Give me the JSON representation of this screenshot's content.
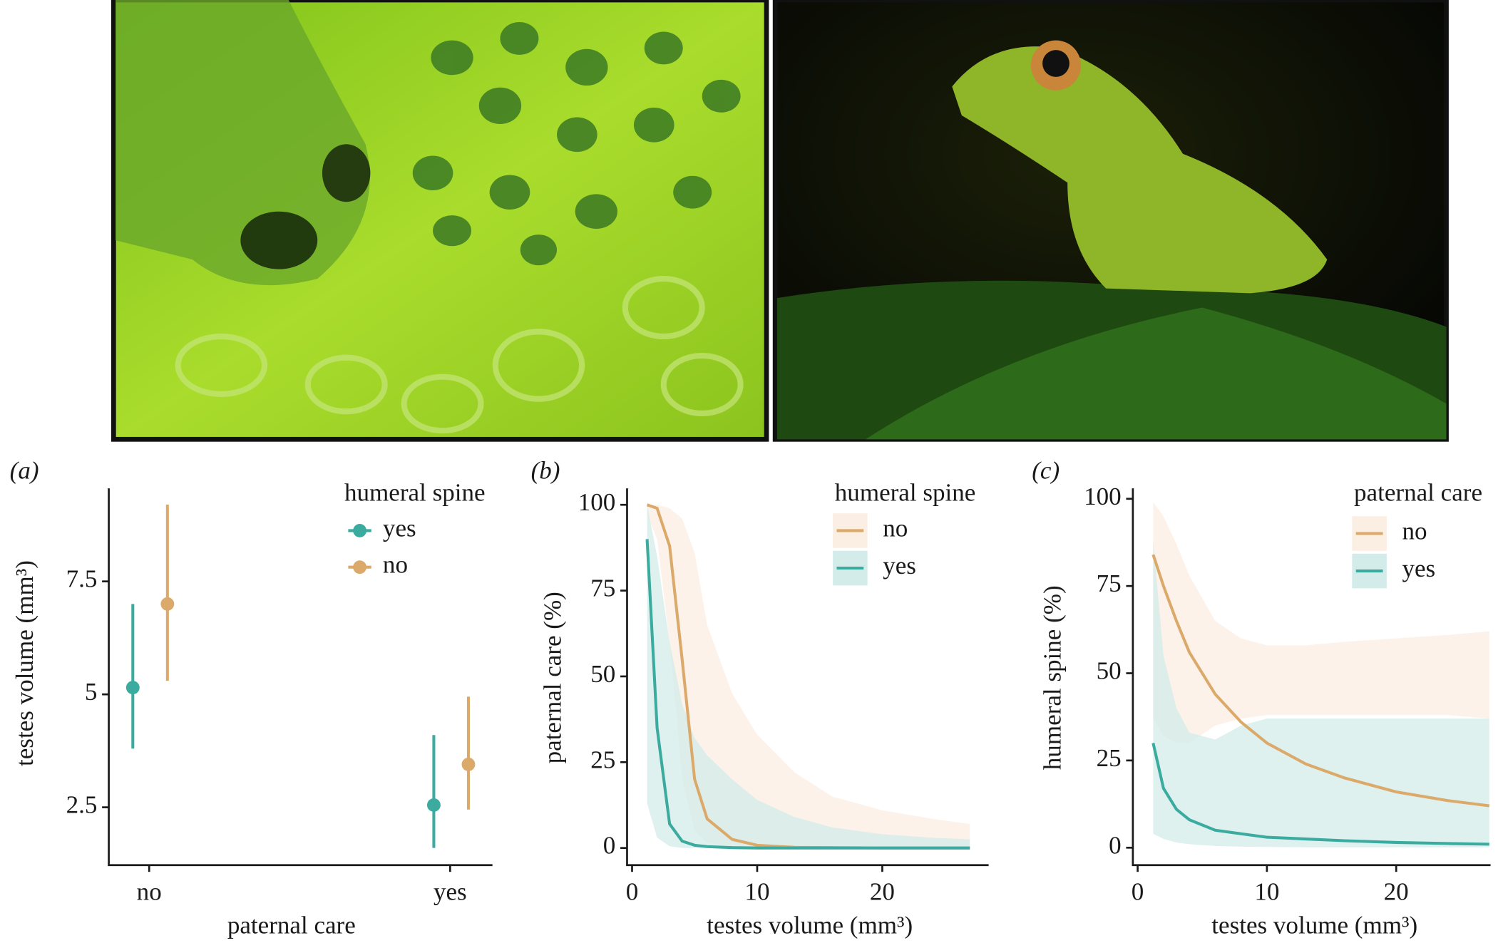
{
  "chart_data": [
    {
      "type": "errorbar",
      "panel_label": "(a)",
      "x_label": "paternal care",
      "y_label": "testes volume (mm³)",
      "legend_title": "humeral spine",
      "categories": [
        "no",
        "yes"
      ],
      "ylim": [
        1.22,
        9.56
      ],
      "yticks": [
        2.5,
        5.0,
        7.5
      ],
      "series": [
        {
          "name": "yes",
          "color": "#3aab9e",
          "values": [
            5.15,
            2.55
          ],
          "lower": [
            3.8,
            1.6
          ],
          "upper": [
            7.0,
            4.1
          ]
        },
        {
          "name": "no",
          "color": "#dba96a",
          "values": [
            7.0,
            3.45
          ],
          "lower": [
            5.3,
            2.45
          ],
          "upper": [
            9.2,
            4.95
          ]
        }
      ]
    },
    {
      "type": "ribbon",
      "panel_label": "(b)",
      "x_label": "testes volume (mm³)",
      "y_label": "paternal care (%)",
      "legend_title": "humeral spine",
      "x": [
        1.2,
        2,
        3,
        4,
        5,
        6,
        8,
        10,
        13,
        16,
        20,
        24,
        27
      ],
      "xlim": [
        -0.4,
        28.5
      ],
      "xticks": [
        0,
        10,
        20
      ],
      "ylim": [
        -5,
        104.8
      ],
      "yticks": [
        0,
        25,
        50,
        75,
        100
      ],
      "series": [
        {
          "name": "no",
          "color": "#dba96a",
          "fill": "#fbeee3",
          "values": [
            100,
            99,
            88,
            55,
            20,
            8.5,
            2.5,
            0.8,
            0.2,
            0.1,
            0,
            0,
            0
          ],
          "upper": [
            100,
            100,
            99,
            96,
            86,
            65,
            45,
            33,
            22,
            15,
            11,
            8.5,
            7
          ],
          "lower": [
            97,
            90,
            60,
            20,
            5,
            1.5,
            0.3,
            0,
            0,
            0,
            0,
            0,
            0
          ]
        },
        {
          "name": "yes",
          "color": "#3aab9e",
          "fill": "#d3ecea",
          "values": [
            90,
            35,
            7,
            2,
            0.8,
            0.4,
            0.1,
            0,
            0,
            0,
            0,
            0,
            0
          ],
          "upper": [
            100,
            85,
            60,
            42,
            32,
            27,
            20,
            14,
            9,
            6,
            4,
            3,
            2.5
          ],
          "lower": [
            13,
            3,
            0.5,
            0,
            0,
            0,
            0,
            0,
            0,
            0,
            0,
            0,
            0
          ]
        }
      ]
    },
    {
      "type": "ribbon",
      "panel_label": "(c)",
      "x_label": "testes volume (mm³)",
      "y_label": "humeral spine (%)",
      "legend_title": "paternal care",
      "x": [
        1.2,
        2,
        3,
        4,
        6,
        8,
        10,
        13,
        16,
        20,
        24,
        27.2
      ],
      "xlim": [
        -0.37,
        27.3
      ],
      "xticks": [
        0,
        10,
        20
      ],
      "ylim": [
        -5,
        103
      ],
      "yticks": [
        0,
        25,
        50,
        75,
        100
      ],
      "series": [
        {
          "name": "no",
          "color": "#dba96a",
          "fill": "#fbeee3",
          "values": [
            84,
            75,
            65,
            56,
            44,
            36,
            30,
            24,
            20,
            16,
            13.5,
            12
          ],
          "upper": [
            99,
            95,
            87,
            78,
            65,
            60,
            58,
            58,
            59,
            60,
            61,
            62
          ],
          "lower": [
            37,
            32,
            30,
            30,
            35,
            37,
            38,
            38,
            38,
            38,
            38,
            37
          ]
        },
        {
          "name": "yes",
          "color": "#3aab9e",
          "fill": "#d3ecea",
          "values": [
            30,
            17,
            11,
            8,
            5,
            4,
            3,
            2.5,
            2,
            1.5,
            1.2,
            1
          ],
          "upper": [
            88,
            55,
            40,
            33,
            31,
            35,
            37,
            37,
            37,
            37,
            37,
            37
          ],
          "lower": [
            4,
            2.5,
            1.5,
            1,
            0.5,
            0.3,
            0.2,
            0.1,
            0.1,
            0.1,
            0.1,
            0.1
          ]
        }
      ]
    }
  ]
}
